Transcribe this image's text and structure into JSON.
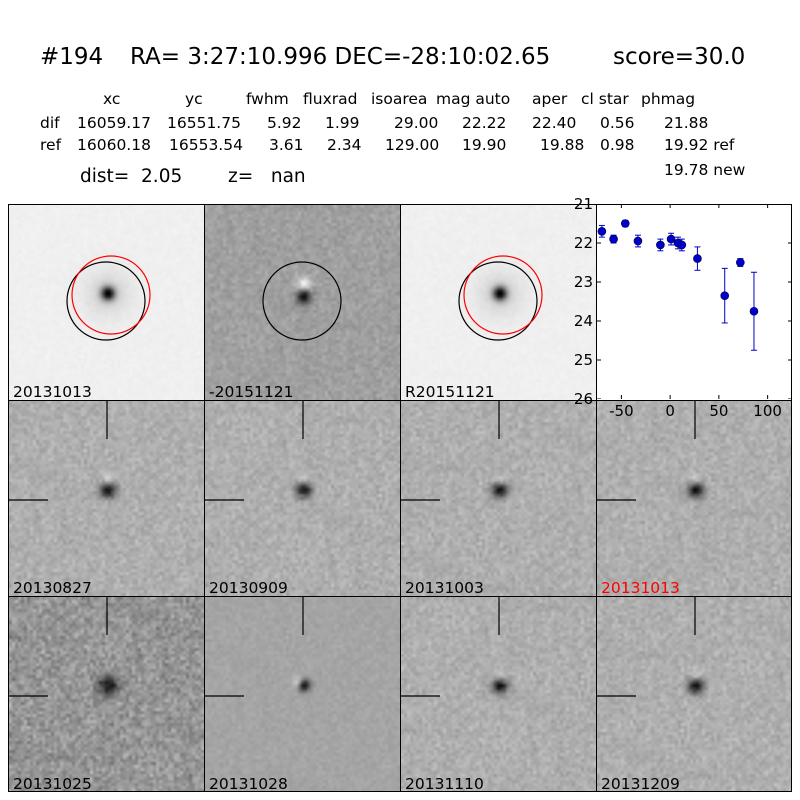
{
  "header": {
    "id": "#194",
    "coords": "RA= 3:27:10.996 DEC=-28:10:02.65",
    "score": "score=30.0"
  },
  "stats": {
    "columns": [
      "xc",
      "yc",
      "fwhm",
      "fluxrad",
      "isoarea",
      "mag auto",
      "aper",
      "cl star",
      "phmag"
    ],
    "rows": [
      {
        "label": "dif",
        "values": [
          "16059.17",
          "16551.75",
          "5.92",
          "1.99",
          "29.00",
          "22.22",
          "22.40",
          "0.56",
          "21.88"
        ]
      },
      {
        "label": "ref",
        "values": [
          "16060.18",
          "16553.54",
          "3.61",
          "2.34",
          "129.00",
          "19.90",
          "19.88",
          "0.98",
          "19.92 ref"
        ]
      }
    ],
    "extra_phmag": "19.78 new",
    "dist": "dist=  2.05",
    "z": "z=   nan"
  },
  "panels": [
    {
      "label": "20131013",
      "style": "template",
      "circles": true,
      "label_color": "#000000"
    },
    {
      "label": "-20151121",
      "style": "diff_top",
      "circles": "black",
      "label_color": "#000000"
    },
    {
      "label": "R20151121",
      "style": "template",
      "circles": true,
      "label_color": "#000000"
    },
    {
      "label": "20130827",
      "style": "stamp",
      "label_color": "#000000"
    },
    {
      "label": "20130909",
      "style": "stamp",
      "label_color": "#000000"
    },
    {
      "label": "20131003",
      "style": "stamp",
      "label_color": "#000000"
    },
    {
      "label": "20131013",
      "style": "stamp",
      "label_color": "#ff0000"
    },
    {
      "label": "20131025",
      "style": "noisy",
      "label_color": "#000000"
    },
    {
      "label": "20131028",
      "style": "stamp_small",
      "label_color": "#000000"
    },
    {
      "label": "20131110",
      "style": "stamp",
      "label_color": "#000000"
    },
    {
      "label": "20131209",
      "style": "stamp",
      "label_color": "#000000"
    }
  ],
  "chart_data": {
    "type": "scatter",
    "title": "",
    "xlabel": "",
    "ylabel": "",
    "xlim": [
      -75,
      125
    ],
    "ylim": [
      26,
      21
    ],
    "y_inverted": true,
    "xticks": [
      "-50",
      "0",
      "50",
      "100"
    ],
    "yticks": [
      "21",
      "22",
      "23",
      "24",
      "25",
      "26"
    ],
    "color": "#0000cc",
    "points": [
      {
        "x": -70,
        "y": 21.7,
        "err": 0.15
      },
      {
        "x": -58,
        "y": 21.9,
        "err": 0.1
      },
      {
        "x": -46,
        "y": 21.5,
        "err": 0.08
      },
      {
        "x": -33,
        "y": 21.95,
        "err": 0.15
      },
      {
        "x": -10,
        "y": 22.05,
        "err": 0.15
      },
      {
        "x": 1,
        "y": 21.9,
        "err": 0.15
      },
      {
        "x": 8,
        "y": 22.0,
        "err": 0.15
      },
      {
        "x": 12,
        "y": 22.05,
        "err": 0.15
      },
      {
        "x": 28,
        "y": 22.4,
        "err": 0.3
      },
      {
        "x": 56,
        "y": 23.35,
        "err": 0.7
      },
      {
        "x": 72,
        "y": 22.5,
        "err": 0.1
      },
      {
        "x": 86,
        "y": 23.75,
        "err": 1.0
      }
    ]
  }
}
